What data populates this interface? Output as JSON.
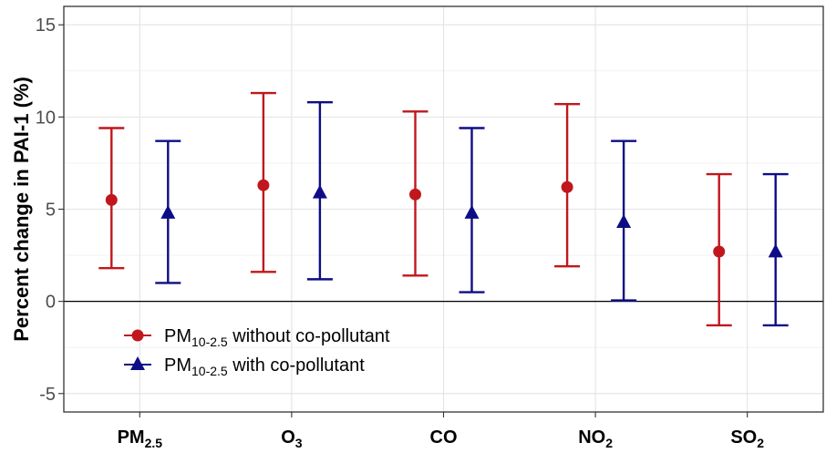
{
  "chart_data": {
    "type": "errorbar",
    "ylabel": "Percent change in PAI-1 (%)",
    "ylim": [
      -6,
      16
    ],
    "yticks": [
      -5,
      0,
      5,
      10,
      15
    ],
    "ytick_labels": [
      "-5",
      "0",
      "5",
      "10",
      "15"
    ],
    "grid": true,
    "reference_line_y": 0,
    "categories": [
      {
        "main": "PM",
        "sub": "2.5"
      },
      {
        "main": "O",
        "sub": "3"
      },
      {
        "main": "CO",
        "sub": ""
      },
      {
        "main": "NO",
        "sub": "2"
      },
      {
        "main": "SO",
        "sub": "2"
      }
    ],
    "series": [
      {
        "name_main": "PM",
        "name_sub": "10-2.5",
        "name_rest": " without co-pollutant",
        "marker": "circle",
        "color": "#c0171c",
        "estimate": [
          5.5,
          6.3,
          5.8,
          6.2,
          2.7
        ],
        "lower": [
          1.8,
          1.6,
          1.4,
          1.9,
          -1.3
        ],
        "upper": [
          9.4,
          11.3,
          10.3,
          10.7,
          6.9
        ]
      },
      {
        "name_main": "PM",
        "name_sub": "10-2.5",
        "name_rest": " with co-pollutant",
        "marker": "triangle",
        "color": "#0d0d86",
        "estimate": [
          4.8,
          5.9,
          4.8,
          4.3,
          2.7
        ],
        "lower": [
          1.0,
          1.2,
          0.5,
          0.05,
          -1.3
        ],
        "upper": [
          8.7,
          10.8,
          9.4,
          8.7,
          6.9
        ]
      }
    ],
    "legend_position": "bottom-left"
  }
}
